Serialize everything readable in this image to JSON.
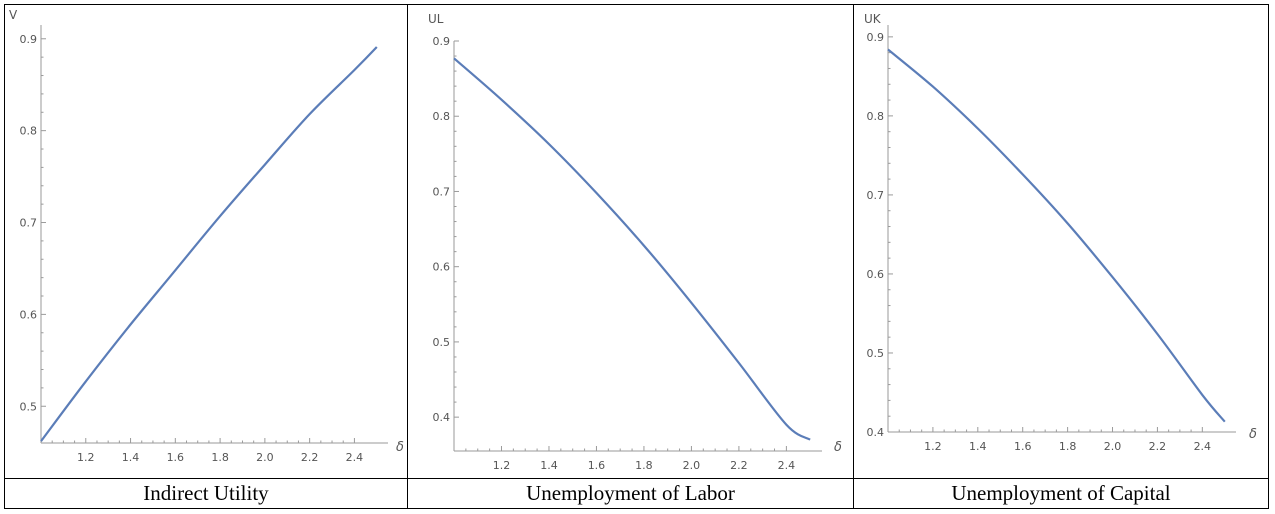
{
  "charts": [
    {
      "caption": "Indirect Utility",
      "chart_data": {
        "type": "line",
        "xlabel": "δ",
        "ylabel": "V",
        "xlim": [
          1.0,
          2.55
        ],
        "ylim": [
          0.46,
          0.915
        ],
        "xticks": [
          1.2,
          1.4,
          1.6,
          1.8,
          2.0,
          2.2,
          2.4
        ],
        "xtick_labels": [
          "1.2",
          "1.4",
          "1.6",
          "1.8",
          "2.0",
          "2.2",
          "2.4"
        ],
        "yticks": [
          0.5,
          0.6,
          0.7,
          0.8,
          0.9
        ],
        "ytick_labels": [
          "0.5",
          "0.6",
          "0.7",
          "0.8",
          "0.9"
        ],
        "series": [
          {
            "color": "#5b7db8",
            "x": [
              1.0,
              1.2,
              1.4,
              1.6,
              1.8,
              2.0,
              2.2,
              2.4,
              2.5
            ],
            "y": [
              0.462,
              0.527,
              0.589,
              0.648,
              0.707,
              0.763,
              0.818,
              0.866,
              0.891
            ]
          }
        ]
      }
    },
    {
      "caption": "Unemployment of Labor",
      "chart_data": {
        "type": "line",
        "xlabel": "δ",
        "ylabel": "UL",
        "xlim": [
          1.0,
          2.55
        ],
        "ylim": [
          0.355,
          0.9
        ],
        "xticks": [
          1.2,
          1.4,
          1.6,
          1.8,
          2.0,
          2.2,
          2.4
        ],
        "xtick_labels": [
          "1.2",
          "1.4",
          "1.6",
          "1.8",
          "2.0",
          "2.2",
          "2.4"
        ],
        "yticks": [
          0.4,
          0.5,
          0.6,
          0.7,
          0.8,
          0.9
        ],
        "ytick_labels": [
          "0.4",
          "0.5",
          "0.6",
          "0.7",
          "0.8",
          "0.9"
        ],
        "series": [
          {
            "color": "#5b7db8",
            "x": [
              1.0,
              1.2,
              1.4,
              1.6,
              1.8,
              2.0,
              2.2,
              2.4,
              2.5
            ],
            "y": [
              0.877,
              0.822,
              0.763,
              0.698,
              0.628,
              0.552,
              0.472,
              0.39,
              0.37
            ]
          }
        ]
      }
    },
    {
      "caption": "Unemployment of Capital",
      "chart_data": {
        "type": "line",
        "xlabel": "δ",
        "ylabel": "UK",
        "xlim": [
          1.0,
          2.55
        ],
        "ylim": [
          0.4,
          0.915
        ],
        "xticks": [
          1.2,
          1.4,
          1.6,
          1.8,
          2.0,
          2.2,
          2.4
        ],
        "xtick_labels": [
          "1.2",
          "1.4",
          "1.6",
          "1.8",
          "2.0",
          "2.2",
          "2.4"
        ],
        "yticks": [
          0.4,
          0.5,
          0.6,
          0.7,
          0.8,
          0.9
        ],
        "ytick_labels": [
          "0.4",
          "0.5",
          "0.6",
          "0.7",
          "0.8",
          "0.9"
        ],
        "series": [
          {
            "color": "#5b7db8",
            "x": [
              1.0,
              1.2,
              1.4,
              1.6,
              1.8,
              2.0,
              2.2,
              2.4,
              2.5
            ],
            "y": [
              0.884,
              0.837,
              0.784,
              0.726,
              0.664,
              0.596,
              0.524,
              0.447,
              0.413
            ]
          }
        ]
      }
    }
  ]
}
